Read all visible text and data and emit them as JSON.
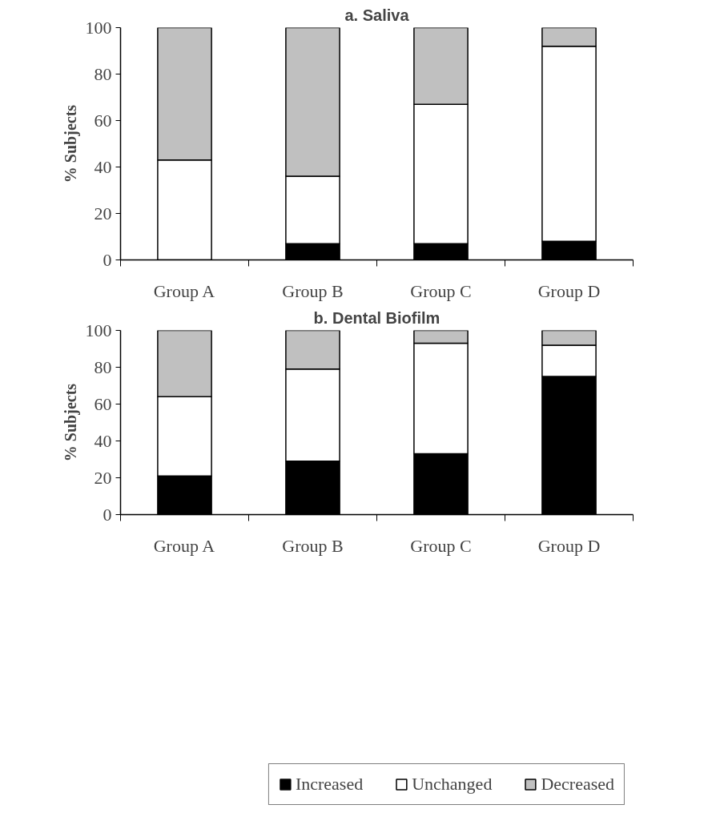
{
  "chart_data": [
    {
      "type": "bar",
      "title": "a. Saliva",
      "ylabel": "% Subjects",
      "categories": [
        "Group A",
        "Group B",
        "Group C",
        "Group D"
      ],
      "stacked": true,
      "ylim": [
        0,
        100
      ],
      "yticks": [
        0,
        20,
        40,
        60,
        80,
        100
      ],
      "grid": false,
      "series": [
        {
          "color": "#000000",
          "values": [
            0,
            7,
            7,
            8
          ]
        },
        {
          "color": "#ffffff",
          "values": [
            43,
            29,
            60,
            84
          ]
        },
        {
          "color": "#c0c0c0",
          "values": [
            57,
            64,
            33,
            8
          ]
        }
      ]
    },
    {
      "type": "bar",
      "title": "b. Dental Biofilm",
      "ylabel": "% Subjects",
      "categories": [
        "Group A",
        "Group B",
        "Group C",
        "Group D"
      ],
      "stacked": true,
      "ylim": [
        0,
        100
      ],
      "yticks": [
        0,
        20,
        40,
        60,
        80,
        100
      ],
      "grid": false,
      "legend": "bottom",
      "series": [
        {
          "name": "Increased",
          "color": "#000000",
          "values": [
            21,
            29,
            33,
            75
          ]
        },
        {
          "name": "Unchanged",
          "color": "#ffffff",
          "values": [
            43,
            50,
            60,
            17
          ]
        },
        {
          "name": "Decreased",
          "color": "#c0c0c0",
          "values": [
            36,
            21,
            7,
            8
          ]
        }
      ]
    }
  ]
}
